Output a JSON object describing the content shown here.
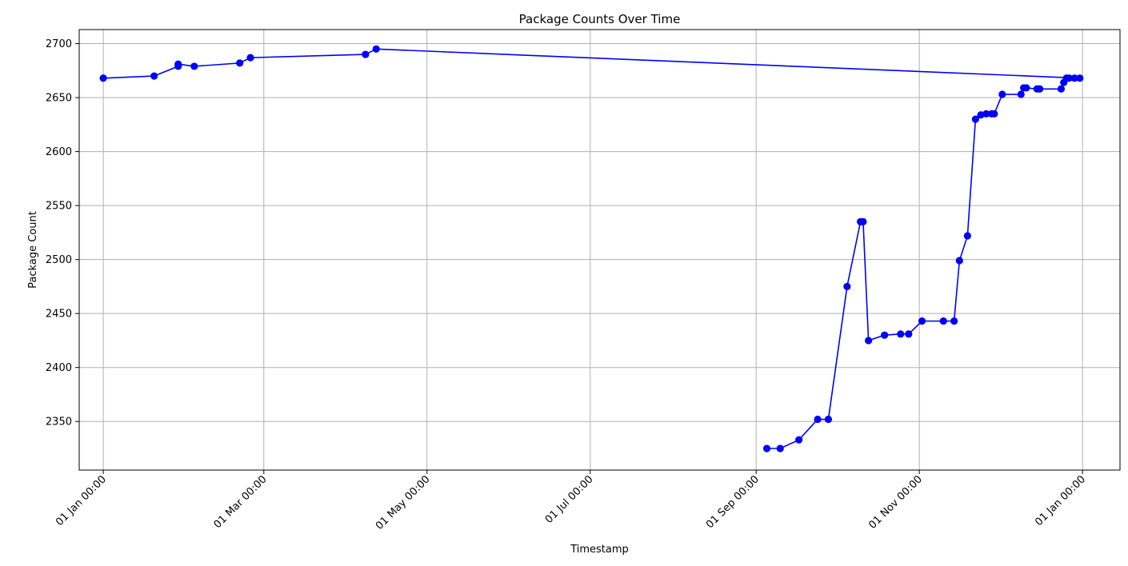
{
  "chart_data": {
    "type": "line",
    "title": "Package Counts Over Time",
    "xlabel": "Timestamp",
    "ylabel": "Package Count",
    "x_scale": "date",
    "xlim": [
      "2023-12-23T00:00",
      "2025-01-15T00:00"
    ],
    "ylim": [
      2305,
      2713
    ],
    "x_ticks": [
      {
        "value": "2024-01-01T00:00",
        "label": "01 Jan 00:00"
      },
      {
        "value": "2024-03-01T00:00",
        "label": "01 Mar 00:00"
      },
      {
        "value": "2024-05-01T00:00",
        "label": "01 May 00:00"
      },
      {
        "value": "2024-07-01T00:00",
        "label": "01 Jul 00:00"
      },
      {
        "value": "2024-09-01T00:00",
        "label": "01 Sep 00:00"
      },
      {
        "value": "2024-11-01T00:00",
        "label": "01 Nov 00:00"
      },
      {
        "value": "2025-01-01T00:00",
        "label": "01 Jan 00:00"
      }
    ],
    "y_ticks": [
      2350,
      2400,
      2450,
      2500,
      2550,
      2600,
      2650,
      2700
    ],
    "grid": true,
    "color": "#0000ff",
    "series": [
      {
        "marker": "circle",
        "x": [
          "2024-01-01T00:00",
          "2024-01-20T00:00",
          "2024-01-29T00:00",
          "2024-01-29T00:00",
          "2024-02-04T00:00",
          "2024-02-21T00:00",
          "2024-02-25T00:00",
          "2024-04-08T00:00",
          "2024-04-12T00:00",
          "2024-12-31T00:00",
          "2024-12-29T00:00",
          "2024-12-27T00:00",
          "2024-12-26T00:00",
          "2024-12-25T00:00",
          "2024-12-24T00:00",
          "2024-12-16T00:00",
          "2024-12-15T00:00",
          "2024-12-11T00:00",
          "2024-12-10T00:00",
          "2024-12-09T00:00",
          "2024-12-02T00:00",
          "2024-11-29T00:00",
          "2024-11-28T00:00",
          "2024-11-26T00:00",
          "2024-11-24T00:00",
          "2024-11-22T00:00",
          "2024-11-19T00:00",
          "2024-11-16T00:00",
          "2024-11-14T00:00",
          "2024-11-10T00:00",
          "2024-11-02T00:00",
          "2024-10-28T00:00",
          "2024-10-25T00:00",
          "2024-10-19T00:00",
          "2024-10-13T00:00",
          "2024-10-11T00:00",
          "2024-10-10T00:00",
          "2024-10-05T00:00",
          "2024-09-28T00:00",
          "2024-09-24T00:00",
          "2024-09-17T00:00",
          "2024-09-10T00:00",
          "2024-09-05T00:00"
        ],
        "y": [
          2668,
          2670,
          2679,
          2681,
          2679,
          2682,
          2687,
          2690,
          2695,
          2668,
          2668,
          2668,
          2668,
          2664,
          2658,
          2658,
          2658,
          2659,
          2659,
          2653,
          2653,
          2635,
          2635,
          2635,
          2634,
          2630,
          2522,
          2499,
          2443,
          2443,
          2443,
          2431,
          2431,
          2430,
          2425,
          2535,
          2535,
          2475,
          2352,
          2352,
          2333,
          2325,
          2325
        ]
      }
    ]
  }
}
